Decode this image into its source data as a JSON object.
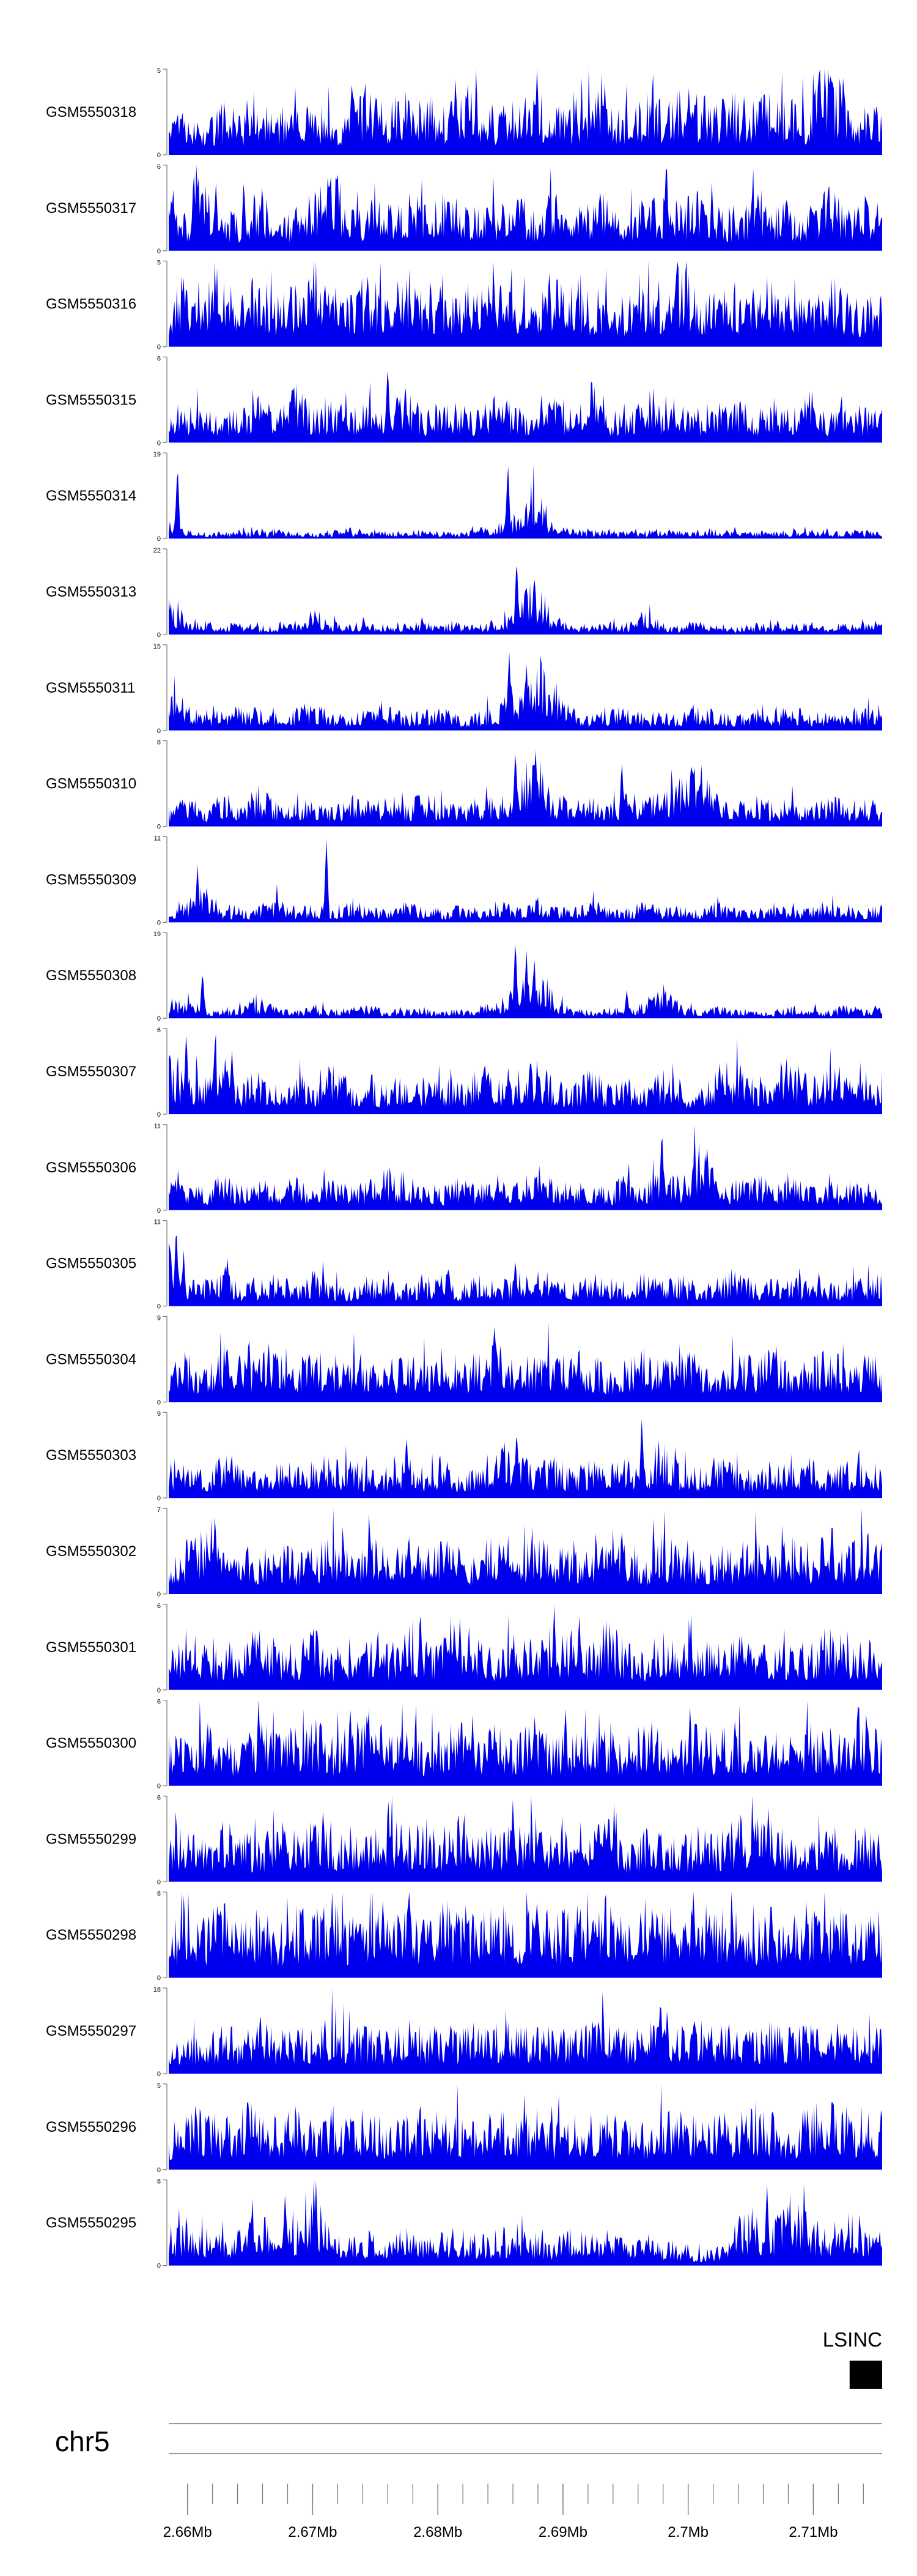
{
  "chart_data": {
    "type": "area",
    "chromosome": "chr5",
    "xlim": [
      2.6585,
      2.7155
    ],
    "axis_unit": "Mb",
    "ticks": [
      "2.66Mb",
      "2.67Mb",
      "2.68Mb",
      "2.69Mb",
      "2.7Mb",
      "2.71Mb"
    ],
    "fill_color": "#0000ee",
    "gene": {
      "name": "LSINC",
      "start": 2.7129,
      "end": 2.7155
    },
    "tracks": [
      {
        "name": "GSM5550318",
        "ymax": 5,
        "ymin": 0,
        "profile": [
          2.3,
          2.0,
          1.6,
          2.4,
          2.1,
          3.2,
          1.9,
          2.8,
          2.3,
          2.0,
          2.7,
          3.4,
          2.2,
          3.6,
          2.9,
          2.4,
          3.3,
          2.8,
          2.1,
          2.6,
          3.0,
          2.4,
          2.2,
          3.4,
          2.6,
          2.3,
          2.9,
          2.5,
          3.1,
          2.6,
          2.3,
          2.8,
          2.4,
          3.1,
          2.7,
          2.3,
          4.9,
          2.6,
          2.2,
          2.9
        ],
        "peaks": [
          [
            2.7124,
            5.0
          ]
        ]
      },
      {
        "name": "GSM5550317",
        "ymax": 6,
        "ymin": 0,
        "profile": [
          3.5,
          2.3,
          4.9,
          2.6,
          1.9,
          3.8,
          1.5,
          2.8,
          3.1,
          4.6,
          2.4,
          3.0,
          2.5,
          3.3,
          2.8,
          3.7,
          2.2,
          3.2,
          2.6,
          3.0,
          2.4,
          3.5,
          2.1,
          2.7,
          3.6,
          2.3,
          2.9,
          3.1,
          2.5,
          3.4,
          2.7,
          2.2,
          3.3,
          2.5,
          2.9,
          2.3,
          3.6,
          2.4,
          2.8,
          2.6
        ],
        "peaks": [
          [
            2.6605,
            5.9
          ],
          [
            2.6645,
            5.2
          ]
        ]
      },
      {
        "name": "GSM5550316",
        "ymax": 5,
        "ymin": 0,
        "profile": [
          2.6,
          3.5,
          2.9,
          3.8,
          2.4,
          3.6,
          2.3,
          2.8,
          3.9,
          2.6,
          2.9,
          3.1,
          2.4,
          3.5,
          2.7,
          2.2,
          2.8,
          3.0,
          3.7,
          2.6,
          2.3,
          2.9,
          3.3,
          2.5,
          2.9,
          2.1,
          3.2,
          2.4,
          3.6,
          2.6,
          2.4,
          2.9,
          2.5,
          3.4,
          2.3,
          2.6,
          3.6,
          2.4,
          2.1,
          2.8
        ],
        "peaks": []
      },
      {
        "name": "GSM5550315",
        "ymax": 6,
        "ymin": 0,
        "profile": [
          1.4,
          1.8,
          2.3,
          1.6,
          2.1,
          2.6,
          1.7,
          3.2,
          1.9,
          2.4,
          1.8,
          2.6,
          2.0,
          3.0,
          1.7,
          2.3,
          2.0,
          1.8,
          2.4,
          2.1,
          1.7,
          2.9,
          1.8,
          2.4,
          2.0,
          1.6,
          2.3,
          1.9,
          2.7,
          1.8,
          2.2,
          2.6,
          1.7,
          2.1,
          1.9,
          2.5,
          1.6,
          2.3,
          1.9,
          2.0
        ],
        "peaks": [
          [
            2.676,
            5.7
          ]
        ]
      },
      {
        "name": "GSM5550314",
        "ymax": 19,
        "ymin": 0,
        "profile": [
          3.0,
          1.5,
          1.0,
          1.3,
          1.6,
          1.2,
          1.8,
          1.4,
          1.1,
          1.5,
          1.9,
          1.3,
          1.6,
          1.2,
          1.7,
          1.5,
          1.4,
          1.9,
          2.6,
          4.5,
          10.5,
          3.2,
          1.8,
          1.4,
          1.6,
          1.2,
          1.5,
          1.8,
          1.3,
          1.6,
          1.9,
          1.4,
          1.2,
          1.6,
          1.3,
          1.7,
          1.5,
          1.2,
          1.6,
          1.4
        ],
        "peaks": [
          [
            2.6592,
            17.0
          ],
          [
            2.6856,
            17.5
          ]
        ]
      },
      {
        "name": "GSM5550313",
        "ymax": 22,
        "ymin": 0,
        "profile": [
          8.0,
          3.5,
          2.8,
          2.1,
          2.6,
          1.9,
          2.4,
          3.0,
          5.2,
          2.6,
          2.2,
          2.9,
          1.8,
          2.3,
          2.7,
          2.0,
          2.5,
          2.2,
          3.0,
          5.0,
          12.0,
          4.2,
          2.4,
          2.0,
          2.6,
          2.2,
          5.5,
          2.4,
          2.0,
          2.6,
          2.2,
          1.9,
          2.4,
          2.1,
          2.8,
          2.2,
          1.9,
          2.5,
          2.2,
          3.0
        ],
        "peaks": [
          [
            2.6863,
            20.5
          ]
        ]
      },
      {
        "name": "GSM5550311",
        "ymax": 15,
        "ymin": 0,
        "profile": [
          7.5,
          3.5,
          2.4,
          2.8,
          3.6,
          2.9,
          2.3,
          3.2,
          4.0,
          2.5,
          2.2,
          3.0,
          3.6,
          2.4,
          2.8,
          3.3,
          2.2,
          2.6,
          4.2,
          6.5,
          11.5,
          6.8,
          3.0,
          2.4,
          2.9,
          3.5,
          2.6,
          2.3,
          2.9,
          3.8,
          2.4,
          2.2,
          3.0,
          2.6,
          3.4,
          2.5,
          2.8,
          2.2,
          3.1,
          2.6
        ],
        "peaks": [
          [
            2.6857,
            14.5
          ]
        ]
      },
      {
        "name": "GSM5550310",
        "ymax": 8,
        "ymin": 0,
        "profile": [
          1.5,
          2.2,
          1.4,
          2.6,
          1.8,
          3.2,
          1.6,
          2.4,
          1.9,
          1.4,
          2.6,
          1.8,
          2.2,
          1.5,
          2.8,
          1.9,
          1.6,
          2.2,
          2.6,
          3.0,
          6.5,
          2.8,
          1.8,
          2.2,
          1.6,
          2.4,
          1.9,
          2.8,
          3.4,
          5.8,
          2.2,
          1.7,
          2.4,
          1.8,
          2.0,
          1.5,
          2.4,
          1.8,
          2.2,
          1.6
        ],
        "peaks": [
          [
            2.6862,
            7.6
          ],
          [
            2.6947,
            6.4
          ]
        ]
      },
      {
        "name": "GSM5550309",
        "ymax": 11,
        "ymin": 0,
        "profile": [
          1.2,
          2.0,
          4.0,
          1.5,
          1.2,
          1.8,
          2.6,
          1.4,
          1.9,
          1.3,
          2.2,
          1.6,
          1.3,
          2.2,
          1.6,
          1.2,
          1.8,
          1.4,
          2.2,
          1.5,
          2.6,
          1.8,
          1.4,
          2.4,
          1.6,
          1.3,
          2.4,
          1.4,
          1.8,
          1.2,
          2.2,
          1.5,
          1.3,
          2.2,
          1.6,
          1.4,
          2.2,
          1.7,
          1.3,
          1.9
        ],
        "peaks": [
          [
            2.6608,
            7.5
          ],
          [
            2.6711,
            11.0
          ]
        ]
      },
      {
        "name": "GSM5550308",
        "ymax": 19,
        "ymin": 0,
        "profile": [
          2.5,
          3.8,
          2.0,
          1.6,
          2.2,
          3.2,
          1.8,
          1.4,
          2.4,
          1.6,
          1.8,
          2.8,
          1.4,
          2.2,
          1.6,
          1.3,
          1.9,
          2.4,
          2.8,
          6.0,
          12.0,
          4.5,
          1.8,
          1.4,
          2.0,
          1.6,
          3.5,
          6.2,
          2.4,
          1.8,
          2.2,
          1.4,
          2.0,
          1.6,
          2.2,
          1.8,
          1.5,
          2.4,
          1.6,
          3.2
        ],
        "peaks": [
          [
            2.6612,
            11.0
          ],
          [
            2.6862,
            18.5
          ],
          [
            2.6951,
            6.5
          ]
        ]
      },
      {
        "name": "GSM5550307",
        "ymax": 6,
        "ymin": 0,
        "profile": [
          3.2,
          2.5,
          2.2,
          3.8,
          1.8,
          2.6,
          1.6,
          2.4,
          1.9,
          2.8,
          1.7,
          2.2,
          1.5,
          2.6,
          1.8,
          2.1,
          1.6,
          2.9,
          1.8,
          2.4,
          3.2,
          2.0,
          1.6,
          2.8,
          1.6,
          2.2,
          1.7,
          2.5,
          1.8,
          1.3,
          2.6,
          2.9,
          1.8,
          2.4,
          3.2,
          1.9,
          2.4,
          2.8,
          1.7,
          2.2
        ],
        "peaks": [
          [
            2.6599,
            6.0
          ]
        ]
      },
      {
        "name": "GSM5550306",
        "ymax": 11,
        "ymin": 0,
        "profile": [
          2.8,
          3.4,
          2.2,
          3.8,
          2.4,
          3.0,
          2.6,
          3.4,
          2.2,
          3.6,
          2.6,
          3.0,
          4.4,
          2.6,
          3.2,
          2.4,
          3.4,
          2.8,
          3.8,
          3.0,
          5.6,
          3.4,
          2.6,
          3.2,
          2.4,
          3.6,
          2.8,
          4.2,
          3.4,
          8.0,
          3.2,
          2.6,
          3.6,
          2.8,
          3.4,
          2.4,
          3.0,
          2.6,
          3.2,
          2.2
        ],
        "peaks": [
          [
            2.6979,
            11.0
          ]
        ]
      },
      {
        "name": "GSM5550305",
        "ymax": 11,
        "ymin": 0,
        "profile": [
          7.0,
          3.4,
          2.6,
          3.8,
          2.2,
          2.8,
          3.2,
          2.4,
          3.6,
          2.6,
          2.2,
          3.2,
          2.6,
          2.2,
          2.8,
          3.4,
          2.4,
          3.0,
          2.6,
          3.2,
          3.8,
          2.6,
          2.2,
          3.4,
          2.8,
          2.4,
          3.6,
          2.8,
          3.2,
          2.4,
          2.8,
          3.6,
          2.4,
          3.0,
          2.6,
          3.4,
          2.2,
          3.0,
          2.6,
          3.2
        ],
        "peaks": [
          [
            2.6591,
            11.0
          ],
          [
            2.6862,
            6.4
          ]
        ]
      },
      {
        "name": "GSM5550304",
        "ymax": 9,
        "ymin": 0,
        "profile": [
          3.0,
          4.2,
          2.6,
          5.0,
          3.2,
          4.0,
          5.6,
          3.4,
          4.4,
          3.0,
          4.2,
          3.6,
          2.8,
          4.6,
          3.8,
          4.8,
          3.4,
          4.0,
          5.2,
          4.4,
          3.6,
          4.8,
          3.8,
          4.2,
          3.0,
          3.6,
          4.4,
          3.2,
          4.6,
          3.8,
          3.2,
          4.2,
          3.6,
          4.8,
          3.2,
          3.8,
          4.4,
          3.4,
          4.0,
          3.2
        ],
        "peaks": [
          [
            2.6649,
            7.5
          ],
          [
            2.6845,
            8.5
          ]
        ]
      },
      {
        "name": "GSM5550303",
        "ymax": 9,
        "ymin": 0,
        "profile": [
          3.4,
          2.8,
          2.2,
          3.6,
          2.6,
          2.0,
          3.4,
          2.6,
          3.0,
          2.4,
          3.4,
          2.2,
          2.8,
          3.2,
          2.4,
          3.8,
          2.2,
          2.6,
          4.8,
          3.6,
          2.8,
          3.4,
          2.4,
          3.0,
          2.6,
          3.2,
          2.8,
          5.2,
          3.0,
          2.4,
          3.4,
          2.6,
          2.2,
          3.0,
          2.6,
          3.2,
          2.4,
          2.8,
          3.4,
          2.6
        ],
        "peaks": [
          [
            2.6775,
            7.0
          ],
          [
            2.6863,
            7.5
          ],
          [
            2.6963,
            8.8
          ]
        ]
      },
      {
        "name": "GSM5550302",
        "ymax": 7,
        "ymin": 0,
        "profile": [
          2.2,
          3.4,
          4.0,
          2.6,
          3.2,
          2.4,
          3.8,
          2.6,
          3.0,
          4.2,
          2.4,
          3.6,
          2.8,
          3.4,
          2.6,
          4.0,
          2.8,
          3.2,
          3.8,
          2.6,
          4.4,
          3.0,
          3.6,
          2.8,
          3.4,
          4.0,
          2.6,
          3.8,
          3.0,
          2.6,
          3.4,
          2.8,
          4.2,
          3.0,
          3.6,
          2.6,
          3.8,
          3.0,
          4.6,
          3.2
        ],
        "peaks": [
          [
            2.6622,
            6.9
          ],
          [
            2.7115,
            6.6
          ]
        ]
      },
      {
        "name": "GSM5550301",
        "ymax": 6,
        "ymin": 0,
        "profile": [
          2.0,
          3.2,
          2.4,
          2.8,
          2.2,
          3.4,
          2.6,
          2.4,
          3.6,
          2.2,
          2.8,
          3.0,
          2.4,
          3.6,
          2.6,
          3.0,
          3.8,
          2.8,
          2.4,
          3.2,
          2.8,
          2.6,
          3.4,
          2.4,
          3.8,
          2.6,
          2.2,
          3.4,
          2.8,
          3.0,
          2.4,
          3.2,
          2.6,
          2.2,
          3.0,
          2.4,
          3.4,
          2.8,
          2.6,
          3.0
        ],
        "peaks": [
          [
            2.6786,
            6.0
          ],
          [
            2.6893,
            6.0
          ],
          [
            2.6913,
            5.6
          ]
        ]
      },
      {
        "name": "GSM5550300",
        "ymax": 6,
        "ymin": 0,
        "profile": [
          3.4,
          2.6,
          3.8,
          2.8,
          2.4,
          3.6,
          2.8,
          3.2,
          3.8,
          2.6,
          3.4,
          4.0,
          2.8,
          3.6,
          2.6,
          3.2,
          3.8,
          2.8,
          3.4,
          3.0,
          3.6,
          2.6,
          3.2,
          2.8,
          3.4,
          2.6,
          3.8,
          3.0,
          2.6,
          3.4,
          2.8,
          3.6,
          2.4,
          3.2,
          2.8,
          3.6,
          2.6,
          3.0,
          3.4,
          2.8
        ],
        "peaks": [
          [
            2.673,
            5.9
          ],
          [
            2.6902,
            5.8
          ]
        ]
      },
      {
        "name": "GSM5550299",
        "ymax": 6,
        "ymin": 0,
        "profile": [
          2.6,
          3.2,
          2.2,
          3.8,
          2.8,
          2.4,
          3.4,
          2.6,
          3.8,
          2.4,
          3.0,
          2.6,
          3.6,
          2.8,
          3.4,
          2.4,
          3.8,
          2.6,
          3.2,
          2.8,
          3.6,
          2.4,
          3.0,
          2.6,
          3.4,
          2.2,
          2.8,
          3.2,
          2.4,
          3.0,
          2.6,
          3.4,
          3.8,
          2.6,
          3.0,
          2.4,
          3.2,
          2.6,
          3.0,
          2.6
        ],
        "peaks": [
          [
            2.686,
            6.0
          ],
          [
            2.7064,
            5.2
          ]
        ]
      },
      {
        "name": "GSM5550298",
        "ymax": 8,
        "ymin": 0,
        "profile": [
          4.4,
          5.0,
          4.2,
          5.6,
          4.6,
          5.2,
          4.0,
          5.4,
          4.8,
          5.8,
          4.4,
          5.0,
          4.6,
          5.4,
          4.2,
          5.6,
          4.8,
          5.0,
          5.4,
          4.6,
          5.8,
          4.4,
          5.2,
          4.8,
          5.6,
          4.4,
          5.0,
          5.4,
          4.6,
          5.2,
          4.8,
          5.6,
          4.4,
          5.0,
          4.6,
          5.4,
          4.8,
          5.2,
          4.4,
          5.0
        ],
        "peaks": [
          [
            2.6879,
            7.6
          ]
        ]
      },
      {
        "name": "GSM5550297",
        "ymax": 18,
        "ymin": 0,
        "profile": [
          8.0,
          6.0,
          7.4,
          8.4,
          6.6,
          9.0,
          7.0,
          8.6,
          7.4,
          9.6,
          7.0,
          8.2,
          6.8,
          9.0,
          7.4,
          8.6,
          7.0,
          9.2,
          7.8,
          8.6,
          7.2,
          9.0,
          7.6,
          8.4,
          9.6,
          7.2,
          8.8,
          10.4,
          7.6,
          9.0,
          7.4,
          8.6,
          7.0,
          9.2,
          7.6,
          8.4,
          7.2,
          9.0,
          7.6,
          8.4
        ],
        "peaks": [
          [
            2.6978,
            17.0
          ]
        ]
      },
      {
        "name": "GSM5550296",
        "ymax": 5,
        "ymin": 0,
        "profile": [
          2.0,
          2.6,
          3.0,
          2.2,
          2.8,
          3.2,
          2.4,
          2.8,
          2.2,
          3.0,
          2.4,
          2.8,
          2.2,
          2.6,
          3.0,
          2.4,
          2.8,
          2.2,
          3.0,
          2.4,
          2.8,
          2.2,
          2.6,
          3.0,
          2.4,
          2.8,
          2.2,
          3.0,
          2.6,
          2.2,
          2.8,
          2.4,
          3.0,
          2.6,
          2.2,
          2.8,
          3.2,
          2.4,
          2.8,
          2.6
        ],
        "peaks": [
          [
            2.6648,
            4.8
          ],
          [
            2.7115,
            4.8
          ]
        ]
      },
      {
        "name": "GSM5550295",
        "ymax": 8,
        "ymin": 0,
        "profile": [
          2.4,
          3.6,
          2.8,
          2.2,
          3.2,
          4.0,
          2.6,
          3.4,
          5.0,
          2.6,
          2.0,
          2.6,
          2.2,
          2.8,
          2.0,
          2.4,
          2.8,
          2.2,
          2.6,
          3.2,
          2.4,
          2.0,
          2.8,
          2.2,
          2.6,
          2.0,
          2.4,
          2.0,
          1.6,
          1.2,
          1.4,
          3.4,
          4.2,
          3.0,
          5.2,
          3.6,
          2.8,
          4.4,
          3.2,
          3.0
        ],
        "peaks": [
          [
            2.6678,
            7.0
          ],
          [
            2.7063,
            7.8
          ]
        ]
      }
    ]
  }
}
